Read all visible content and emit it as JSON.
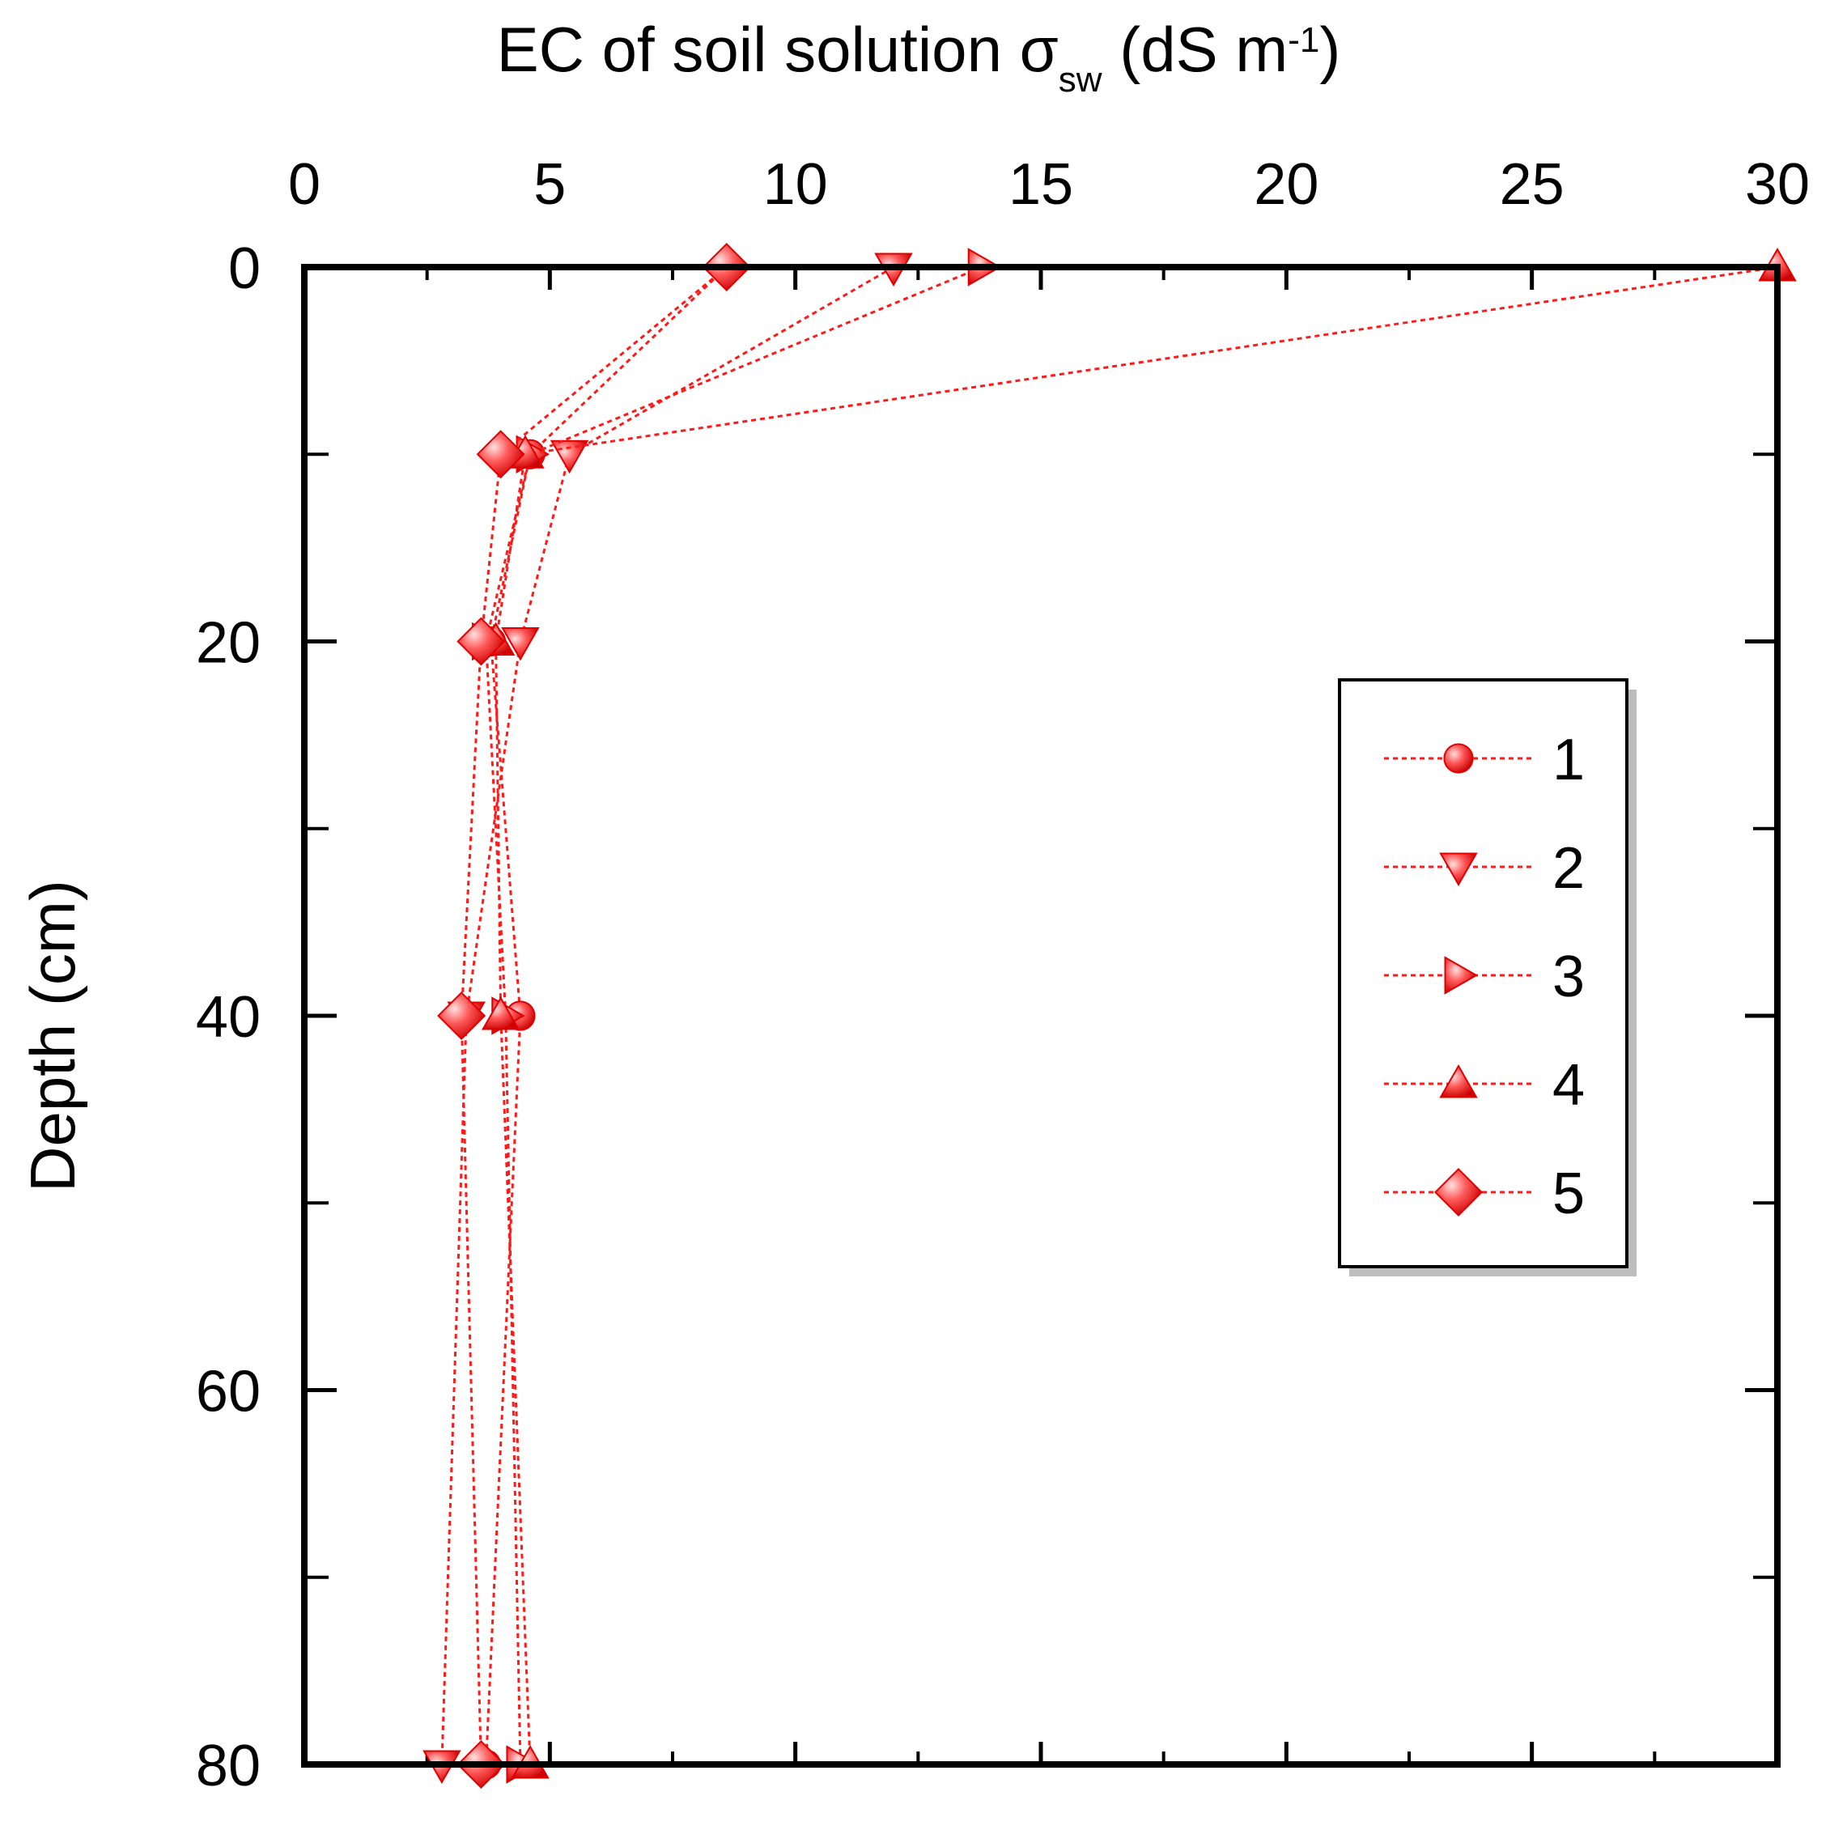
{
  "chart_data": {
    "type": "line",
    "title": "",
    "xlabel_parts": {
      "main": "EC of soil solution σ",
      "sub": "sw",
      "units_open": " (dS m",
      "sup": "-1",
      "units_close": ")"
    },
    "ylabel": "Depth (cm)",
    "xlim": [
      0,
      30
    ],
    "ylim": [
      0,
      80
    ],
    "y_inverted": true,
    "x_axis_position": "top",
    "x_ticks": [
      0,
      5,
      10,
      15,
      20,
      25,
      30
    ],
    "x_tick_labels": [
      "0",
      "5",
      "10",
      "15",
      "20",
      "25",
      "30"
    ],
    "y_ticks": [
      0,
      20,
      40,
      60,
      80
    ],
    "y_tick_labels": [
      "0",
      "20",
      "40",
      "60",
      "80"
    ],
    "x_minor_step": 2.5,
    "y_minor_step": 10,
    "grid": false,
    "legend_position": "right-middle",
    "series": [
      {
        "name": "1",
        "marker": "circle",
        "color": "#ff1a1a",
        "line_style": "dotted",
        "points": [
          [
            8.6,
            0
          ],
          [
            4.6,
            10
          ],
          [
            3.8,
            20
          ],
          [
            4.4,
            40
          ],
          [
            3.7,
            80
          ]
        ]
      },
      {
        "name": "2",
        "marker": "triangle-down",
        "color": "#ff1a1a",
        "line_style": "dotted",
        "points": [
          [
            12.0,
            0
          ],
          [
            5.4,
            10
          ],
          [
            4.4,
            20
          ],
          [
            3.3,
            40
          ],
          [
            2.8,
            80
          ]
        ]
      },
      {
        "name": "3",
        "marker": "triangle-right",
        "color": "#ff1a1a",
        "line_style": "dotted",
        "points": [
          [
            13.8,
            0
          ],
          [
            4.6,
            10
          ],
          [
            3.7,
            20
          ],
          [
            4.1,
            40
          ],
          [
            4.4,
            80
          ]
        ]
      },
      {
        "name": "4",
        "marker": "triangle-up",
        "color": "#ff1a1a",
        "line_style": "dotted",
        "points": [
          [
            30.0,
            0
          ],
          [
            4.5,
            10
          ],
          [
            3.9,
            20
          ],
          [
            4.0,
            40
          ],
          [
            4.6,
            80
          ]
        ]
      },
      {
        "name": "5",
        "marker": "diamond",
        "color": "#ff1a1a",
        "line_style": "dotted",
        "points": [
          [
            8.6,
            0
          ],
          [
            4.0,
            10
          ],
          [
            3.6,
            20
          ],
          [
            3.2,
            40
          ],
          [
            3.6,
            80
          ]
        ]
      }
    ]
  }
}
